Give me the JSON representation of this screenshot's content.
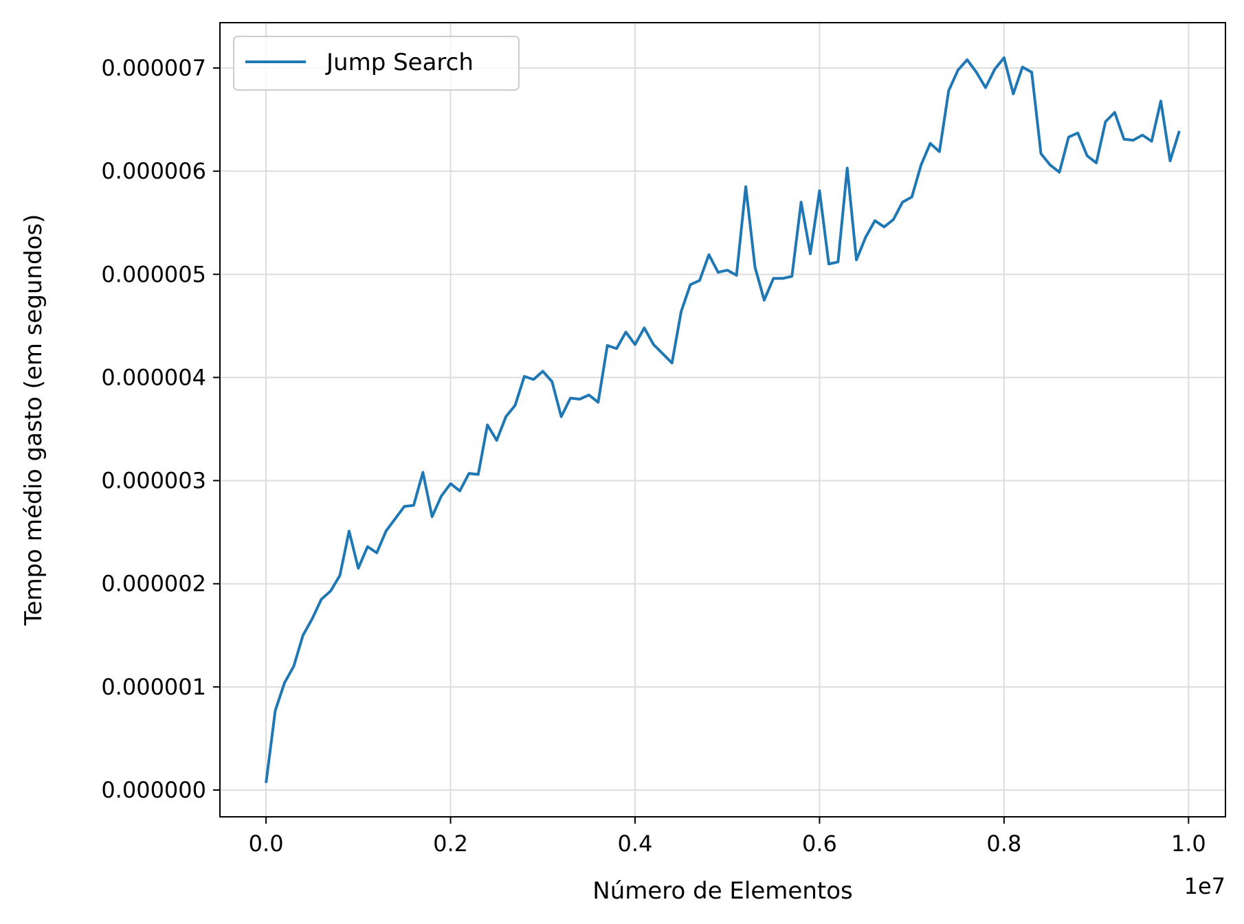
{
  "chart_data": {
    "type": "line",
    "title": "",
    "xlabel": "Número de Elementos",
    "ylabel": "Tempo médio gasto (em segundos)",
    "x_offset_label": "1e7",
    "xlim": [
      -500000,
      10400000
    ],
    "ylim": [
      -2.6e-07,
      7.44e-06
    ],
    "xticks": [
      0,
      2000000,
      4000000,
      6000000,
      8000000,
      10000000
    ],
    "xtick_labels": [
      "0.0",
      "0.2",
      "0.4",
      "0.6",
      "0.8",
      "1.0"
    ],
    "yticks": [
      0,
      1e-06,
      2e-06,
      3e-06,
      4e-06,
      5e-06,
      6e-06,
      7e-06
    ],
    "ytick_labels": [
      "0.000000",
      "0.000001",
      "0.000002",
      "0.000003",
      "0.000004",
      "0.000005",
      "0.000006",
      "0.000007"
    ],
    "grid": true,
    "legend_position": "top-left",
    "colors": {
      "series": "#1f77b4",
      "grid": "#dddddd",
      "axis": "#000000"
    },
    "series": [
      {
        "name": "Jump Search",
        "x": [
          0,
          100000,
          200000,
          300000,
          400000,
          500000,
          600000,
          700000,
          800000,
          900000,
          1000000,
          1100000,
          1200000,
          1300000,
          1400000,
          1500000,
          1600000,
          1700000,
          1800000,
          1900000,
          2000000,
          2100000,
          2200000,
          2300000,
          2400000,
          2500000,
          2600000,
          2700000,
          2800000,
          2900000,
          3000000,
          3100000,
          3200000,
          3300000,
          3400000,
          3500000,
          3600000,
          3700000,
          3800000,
          3900000,
          4000000,
          4100000,
          4200000,
          4300000,
          4400000,
          4500000,
          4600000,
          4700000,
          4800000,
          4900000,
          5000000,
          5100000,
          5200000,
          5300000,
          5400000,
          5500000,
          5600000,
          5700000,
          5800000,
          5900000,
          6000000,
          6100000,
          6200000,
          6300000,
          6400000,
          6500000,
          6600000,
          6700000,
          6800000,
          6900000,
          7000000,
          7100000,
          7200000,
          7300000,
          7400000,
          7500000,
          7600000,
          7700000,
          7800000,
          7900000,
          8000000,
          8100000,
          8200000,
          8300000,
          8400000,
          8500000,
          8600000,
          8700000,
          8800000,
          8900000,
          9000000,
          9100000,
          9200000,
          9300000,
          9400000,
          9500000,
          9600000,
          9700000,
          9800000,
          9900000
        ],
        "values": [
          7e-08,
          7.7e-07,
          1.04e-06,
          1.2e-06,
          1.5e-06,
          1.66e-06,
          1.85e-06,
          1.93e-06,
          2.08e-06,
          2.51e-06,
          2.15e-06,
          2.36e-06,
          2.3e-06,
          2.51e-06,
          2.63e-06,
          2.75e-06,
          2.76e-06,
          3.08e-06,
          2.65e-06,
          2.85e-06,
          2.97e-06,
          2.9e-06,
          3.07e-06,
          3.06e-06,
          3.54e-06,
          3.39e-06,
          3.62e-06,
          3.73e-06,
          4.01e-06,
          3.98e-06,
          4.06e-06,
          3.96e-06,
          3.62e-06,
          3.8e-06,
          3.79e-06,
          3.83e-06,
          3.76e-06,
          4.31e-06,
          4.28e-06,
          4.44e-06,
          4.32e-06,
          4.48e-06,
          4.32e-06,
          4.23e-06,
          4.14e-06,
          4.64e-06,
          4.9e-06,
          4.94e-06,
          5.19e-06,
          5.02e-06,
          5.04e-06,
          4.99e-06,
          5.85e-06,
          5.07e-06,
          4.75e-06,
          4.96e-06,
          4.96e-06,
          4.98e-06,
          5.7e-06,
          5.2e-06,
          5.81e-06,
          5.1e-06,
          5.12e-06,
          6.03e-06,
          5.14e-06,
          5.36e-06,
          5.52e-06,
          5.46e-06,
          5.53e-06,
          5.7e-06,
          5.75e-06,
          6.06e-06,
          6.27e-06,
          6.19e-06,
          6.78e-06,
          6.98e-06,
          7.08e-06,
          6.96e-06,
          6.81e-06,
          6.99e-06,
          7.1e-06,
          6.75e-06,
          7.01e-06,
          6.96e-06,
          6.17e-06,
          6.06e-06,
          5.99e-06,
          6.33e-06,
          6.37e-06,
          6.15e-06,
          6.08e-06,
          6.48e-06,
          6.57e-06,
          6.31e-06,
          6.3e-06,
          6.35e-06,
          6.29e-06,
          6.68e-06,
          6.1e-06,
          6.39e-06
        ]
      }
    ]
  }
}
